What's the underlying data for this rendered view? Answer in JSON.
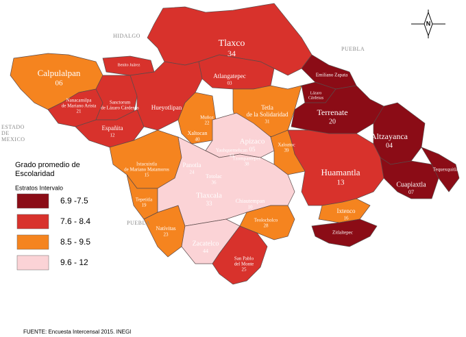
{
  "legend": {
    "title": [
      "Grado promedio de",
      "Escolaridad"
    ],
    "subtitle": "Estratos Intervalo",
    "entries": [
      {
        "label": "6.9 -7.5",
        "color": "#8b0c16"
      },
      {
        "label": "7.6 - 8.4",
        "color": "#d8322c"
      },
      {
        "label": "8.5 - 9.5",
        "color": "#f5841f"
      },
      {
        "label": "9.6 - 12",
        "color": "#fbd3d6"
      }
    ]
  },
  "source": "FUENTE: Encuesta Intercensal 2015. INEGI",
  "neighbors": {
    "north": "HIDALGO",
    "northeast": "PUEBLA",
    "southwest": "PUEBLA",
    "west": [
      "ESTADO",
      "DE",
      "MEXICO"
    ]
  },
  "compass": "N",
  "municipalities": [
    {
      "name": [
        "Tlaxco"
      ],
      "number": "34",
      "color": "#d8322c"
    },
    {
      "name": [
        "Atlangatepec"
      ],
      "number": "03",
      "color": "#d8322c"
    },
    {
      "name": [
        "Calpulalpan"
      ],
      "number": "06",
      "color": "#f5841f"
    },
    {
      "name": [
        "Benito Juárez"
      ],
      "color": "#d8322c"
    },
    {
      "name": [
        "Nanacamilpa",
        "de Mariano Arista"
      ],
      "number": "21",
      "color": "#d8322c"
    },
    {
      "name": [
        "Sanctorum",
        "de Lázaro Cárdenas"
      ],
      "color": "#d8322c"
    },
    {
      "name": [
        "Hueyotlipan"
      ],
      "color": "#d8322c"
    },
    {
      "name": [
        "Españita"
      ],
      "number": "12",
      "color": "#d8322c"
    },
    {
      "name": [
        "Ixtacuixtla",
        "de Mariano Matamoros"
      ],
      "number": "15",
      "color": "#f5841f"
    },
    {
      "name": [
        "Tepetitla"
      ],
      "number": "19",
      "color": "#f5841f"
    },
    {
      "name": [
        "Natívitas"
      ],
      "number": "23",
      "color": "#f5841f"
    },
    {
      "name": [
        "Xaltocan"
      ],
      "number": "40",
      "color": "#f5841f"
    },
    {
      "name": [
        "Tetla",
        "de la Solidaridad"
      ],
      "number": "31",
      "color": "#f5841f"
    },
    {
      "name": [
        "Apizaco"
      ],
      "number": "05",
      "color": "#fbd3d6"
    },
    {
      "name": [
        "Emiliano Zapata"
      ],
      "color": "#8b0c16"
    },
    {
      "name": [
        "Lázaro",
        "Cárdenas"
      ],
      "color": "#8b0c16"
    },
    {
      "name": [
        "Terrenate"
      ],
      "number": "20",
      "color": "#8b0c16"
    },
    {
      "name": [
        "Altzayanca"
      ],
      "number": "04",
      "color": "#8b0c16"
    },
    {
      "name": [
        "Huamantla"
      ],
      "number": "13",
      "color": "#d8322c"
    },
    {
      "name": [
        "Cuapiaxtla"
      ],
      "number": "07",
      "color": "#8b0c16"
    },
    {
      "name": [
        "Tequexquitla"
      ],
      "color": "#8b0c16"
    },
    {
      "name": [
        "Ixtenco"
      ],
      "number": "16",
      "color": "#f5841f"
    },
    {
      "name": [
        "Zitlaltepec"
      ],
      "color": "#8b0c16"
    },
    {
      "name": [
        "Xaloztoc"
      ],
      "number": "39",
      "color": "#f5841f"
    },
    {
      "name": [
        "Tlaxcala"
      ],
      "number": "33",
      "color": "#fbd3d6"
    },
    {
      "name": [
        "Teolocholco"
      ],
      "number": "28",
      "color": "#f5841f"
    },
    {
      "name": [
        "Zacatelco"
      ],
      "number": "44",
      "color": "#fbd3d6"
    },
    {
      "name": [
        "San Pablo",
        "del Monte"
      ],
      "number": "25",
      "color": "#d8322c"
    },
    {
      "name": [
        "Chiautempan"
      ],
      "number": "10",
      "color": "#fbd3d6"
    },
    {
      "name": [
        "Panotla"
      ],
      "number": "24",
      "color": "#fbd3d6"
    },
    {
      "name": [
        "Totolac"
      ],
      "number": "36",
      "color": "#fbd3d6"
    },
    {
      "name": [
        "Tzompantepec"
      ],
      "number": "38",
      "color": "#fbd3d6"
    },
    {
      "name": [
        "Yauhquemehcan"
      ],
      "number": "43",
      "color": "#fbd3d6"
    },
    {
      "name": [
        "Muñoz"
      ],
      "number": "22",
      "color": "#f5841f"
    }
  ]
}
